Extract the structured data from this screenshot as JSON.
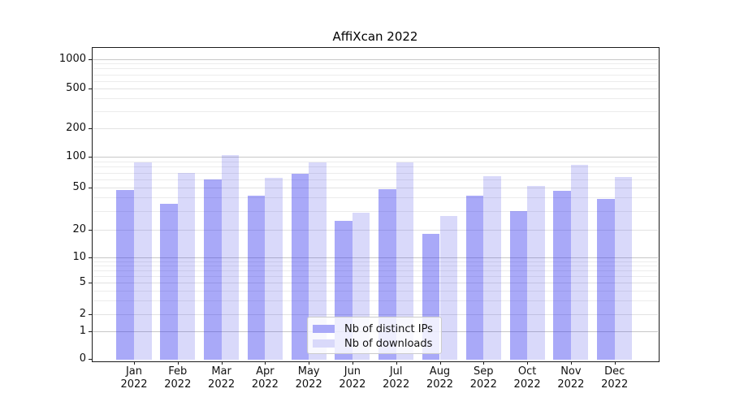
{
  "chart_data": {
    "type": "bar",
    "title": "AffiXcan 2022",
    "categories": [
      "Jan",
      "Feb",
      "Mar",
      "Apr",
      "May",
      "Jun",
      "Jul",
      "Aug",
      "Sep",
      "Oct",
      "Nov",
      "Dec"
    ],
    "category_year": "2022",
    "series": [
      {
        "name": "Nb of distinct IPs",
        "color": "#a9a9f8",
        "fill_rgba": "rgba(40,40,238,0.40)",
        "values": [
          47,
          35,
          60,
          42,
          68,
          24,
          48,
          18,
          42,
          30,
          46,
          39
        ]
      },
      {
        "name": "Nb of downloads",
        "color": "#d9d9fa",
        "fill_rgba": "rgba(65,65,230,0.20)",
        "values": [
          89,
          69,
          105,
          62,
          88,
          29,
          88,
          27,
          64,
          52,
          84,
          63
        ]
      }
    ],
    "y_axis": {
      "scale": "log-like",
      "ticks": [
        1000,
        500,
        200,
        100,
        50,
        20,
        10,
        5,
        2,
        1,
        0
      ]
    },
    "x_axis": {
      "label_lines": 2
    },
    "grid": true,
    "legend": {
      "position": "lower-center"
    },
    "colors": {
      "spine": "#1c1c1c",
      "grid_major": "#c8c8c8",
      "grid_minor": "#ececec"
    }
  }
}
